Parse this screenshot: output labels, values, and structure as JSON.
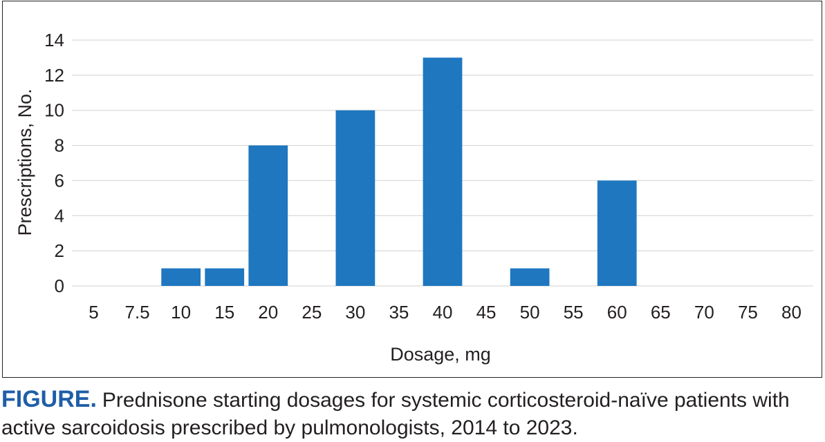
{
  "chart_data": {
    "type": "bar",
    "categories": [
      "5",
      "7.5",
      "10",
      "15",
      "20",
      "25",
      "30",
      "35",
      "40",
      "45",
      "50",
      "55",
      "60",
      "65",
      "70",
      "75",
      "80"
    ],
    "values": [
      0,
      0,
      1,
      1,
      8,
      0,
      10,
      0,
      13,
      0,
      1,
      0,
      6,
      0,
      0,
      0,
      0
    ],
    "xlabel": "Dosage, mg",
    "ylabel": "Prescriptions, No.",
    "ylim": [
      0,
      14
    ],
    "yticks": [
      "0",
      "2",
      "4",
      "6",
      "8",
      "10",
      "12",
      "14"
    ],
    "grid": true,
    "bar_color": "#1f77c0",
    "grid_color": "#d9d9d9"
  },
  "caption": {
    "label": "FIGURE.",
    "text": "Prednisone starting dosages for systemic corticosteroid-naïve patients with active sarcoidosis prescribed by pulmonologists, 2014 to 2023."
  }
}
